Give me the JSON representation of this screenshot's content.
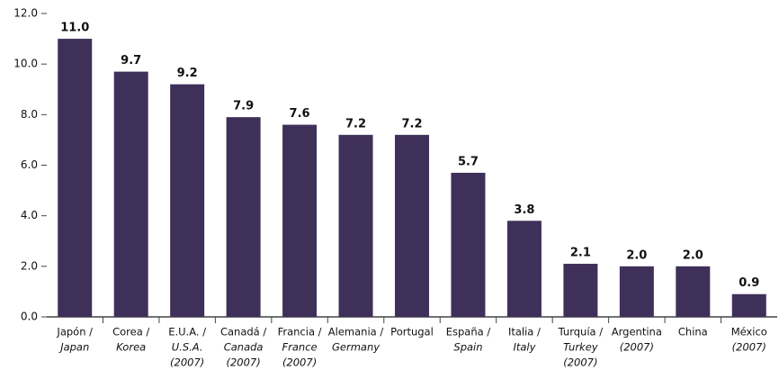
{
  "chart_data": {
    "type": "bar",
    "categories": [
      [
        "Japón /",
        "Japan"
      ],
      [
        "Corea /",
        "Korea"
      ],
      [
        "E.U.A. /",
        "U.S.A.",
        "(2007)"
      ],
      [
        "Canadá /",
        "Canada",
        "(2007)"
      ],
      [
        "Francia /",
        "France",
        "(2007)"
      ],
      [
        "Alemania /",
        "Germany"
      ],
      [
        "Portugal"
      ],
      [
        "España /",
        "Spain"
      ],
      [
        "Italia /",
        "Italy"
      ],
      [
        "Turquía /",
        "Turkey",
        "(2007)"
      ],
      [
        "Argentina",
        "(2007)"
      ],
      [
        "China"
      ],
      [
        "México",
        "(2007)"
      ]
    ],
    "values": [
      11.0,
      9.7,
      9.2,
      7.9,
      7.6,
      7.2,
      7.2,
      5.7,
      3.8,
      2.1,
      2.0,
      2.0,
      0.9
    ],
    "value_labels": [
      "11.0",
      "9.7",
      "9.2",
      "7.9",
      "7.6",
      "7.2",
      "7.2",
      "5.7",
      "3.8",
      "2.1",
      "2.0",
      "2.0",
      "0.9"
    ],
    "color": "#3f3059",
    "ylim": [
      0,
      12
    ],
    "yticks": [
      {
        "value": 0,
        "label": "0.0"
      },
      {
        "value": 2,
        "label": "2.0"
      },
      {
        "value": 4,
        "label": "4.0"
      },
      {
        "value": 6,
        "label": "6.0"
      },
      {
        "value": 8,
        "label": "8.0"
      },
      {
        "value": 10,
        "label": "10.0"
      },
      {
        "value": 12,
        "label": "12.0"
      }
    ],
    "grid": false
  }
}
